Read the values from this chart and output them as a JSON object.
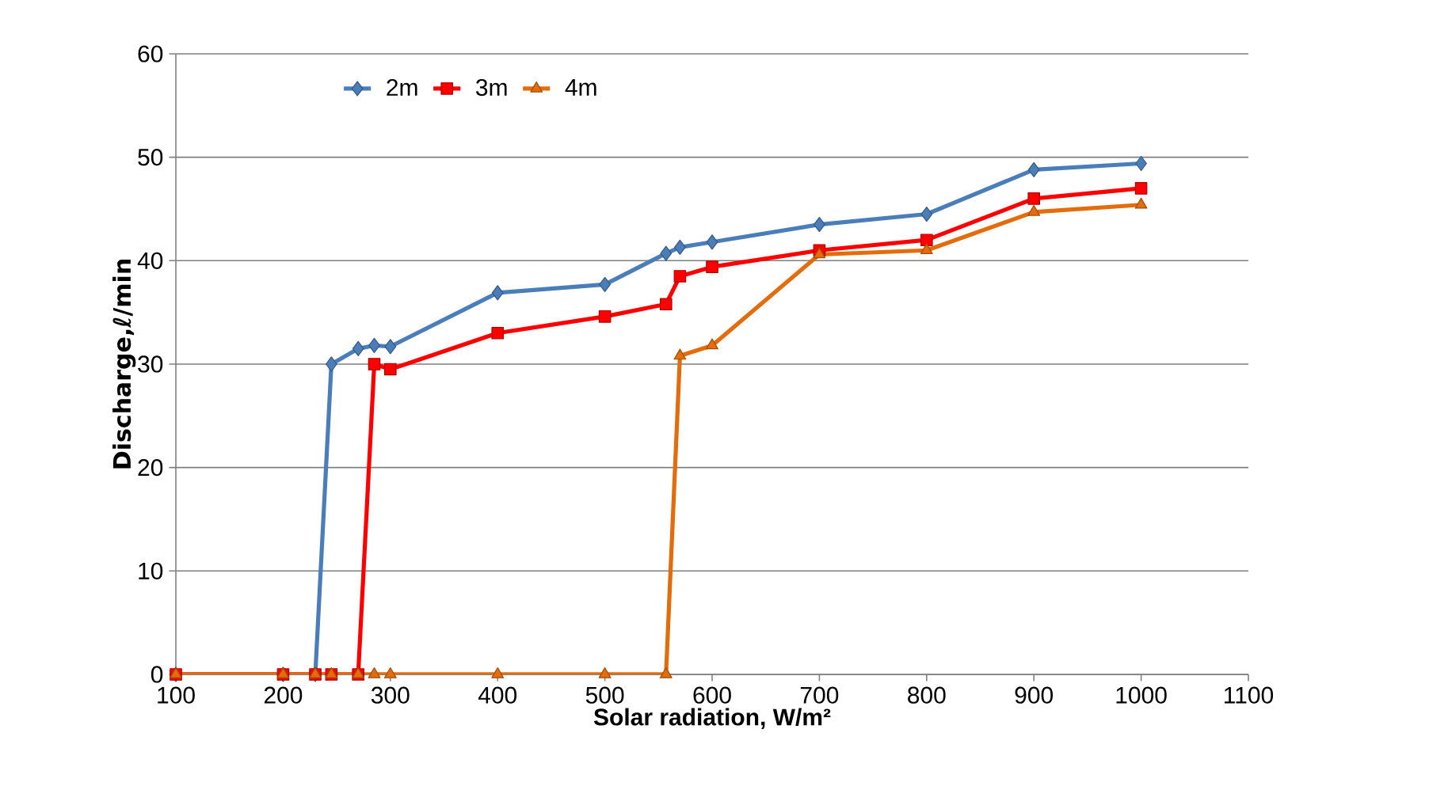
{
  "chart_data": {
    "type": "line",
    "xlabel": "Solar radiation, W/m²",
    "ylabel": "Discharge,ℓ/min",
    "x": [
      100,
      200,
      230,
      245,
      270,
      285,
      300,
      400,
      500,
      557,
      570,
      600,
      700,
      800,
      900,
      1000
    ],
    "series": [
      {
        "name": "2m",
        "color": "#4a7ebb",
        "marker": "diamond",
        "values": [
          0,
          0,
          0,
          30,
          31.5,
          31.8,
          31.7,
          36.9,
          37.7,
          40.7,
          41.3,
          41.8,
          43.5,
          44.5,
          48.8,
          49.4
        ]
      },
      {
        "name": "3m",
        "color": "#ff0000",
        "marker": "square",
        "values": [
          0,
          0,
          0,
          0,
          0,
          30,
          29.5,
          33,
          34.6,
          35.8,
          38.5,
          39.4,
          41,
          42,
          46,
          47
        ]
      },
      {
        "name": "4m",
        "color": "#e46c0a",
        "marker": "triangle",
        "values": [
          0,
          0,
          0,
          0,
          0,
          0,
          0,
          0,
          0,
          0,
          30.8,
          31.8,
          40.6,
          41,
          44.7,
          45.4
        ]
      }
    ],
    "xlim": [
      100,
      1100
    ],
    "xticks": [
      100,
      200,
      300,
      400,
      500,
      600,
      700,
      800,
      900,
      1000,
      1100
    ],
    "ylim": [
      0,
      60
    ],
    "yticks": [
      0,
      10,
      20,
      30,
      40,
      50,
      60
    ],
    "grid": "y",
    "legend": "top left",
    "line_style": "solid"
  }
}
